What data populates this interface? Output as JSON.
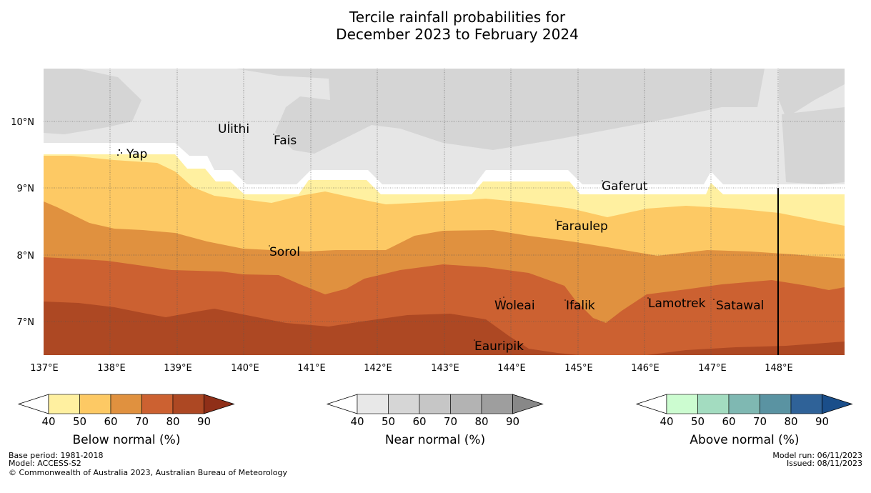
{
  "title": {
    "line1": "Tercile rainfall probabilities for",
    "line2": "December 2023 to February 2024"
  },
  "map": {
    "lon_labels": [
      "137°E",
      "138°E",
      "139°E",
      "140°E",
      "141°E",
      "142°E",
      "143°E",
      "144°E",
      "145°E",
      "146°E",
      "147°E",
      "148°E"
    ],
    "lat_labels": [
      "10°N",
      "9°N",
      "8°N",
      "7°N"
    ],
    "places": [
      {
        "name": "Ulithi"
      },
      {
        "name": "Fais"
      },
      {
        "name": "Yap"
      },
      {
        "name": "Gaferut"
      },
      {
        "name": "Faraulep"
      },
      {
        "name": "Sorol"
      },
      {
        "name": "Woleai"
      },
      {
        "name": "Ifalik"
      },
      {
        "name": "Lamotrek"
      },
      {
        "name": "Satawal"
      },
      {
        "name": "Eauripik"
      }
    ]
  },
  "colorbars": [
    {
      "label": "Below normal (%)",
      "ticks": [
        "40",
        "50",
        "60",
        "70",
        "80",
        "90"
      ],
      "colors": [
        "#fff0a0",
        "#fdc964",
        "#e0913f",
        "#cc6131",
        "#ad4823",
        "#8f2f18"
      ]
    },
    {
      "label": "Near normal (%)",
      "ticks": [
        "40",
        "50",
        "60",
        "70",
        "80",
        "90"
      ],
      "colors": [
        "#e8e8e8",
        "#d6d6d6",
        "#c6c6c6",
        "#b3b3b3",
        "#9e9e9e",
        "#888888"
      ]
    },
    {
      "label": "Above normal (%)",
      "ticks": [
        "40",
        "50",
        "60",
        "70",
        "80",
        "90"
      ],
      "colors": [
        "#ccfcd0",
        "#a3dcc0",
        "#7fb8b2",
        "#5a93a2",
        "#2f6298",
        "#1a4e8a"
      ]
    }
  ],
  "footer": {
    "base_period": "Base period: 1981-2018",
    "model": "Model: ACCESS-S2",
    "copyright": "© Commonwealth of Australia 2023, Australian Bureau of Meteorology",
    "model_run": "Model run: 06/11/2023",
    "issued": "Issued: 08/11/2023"
  }
}
